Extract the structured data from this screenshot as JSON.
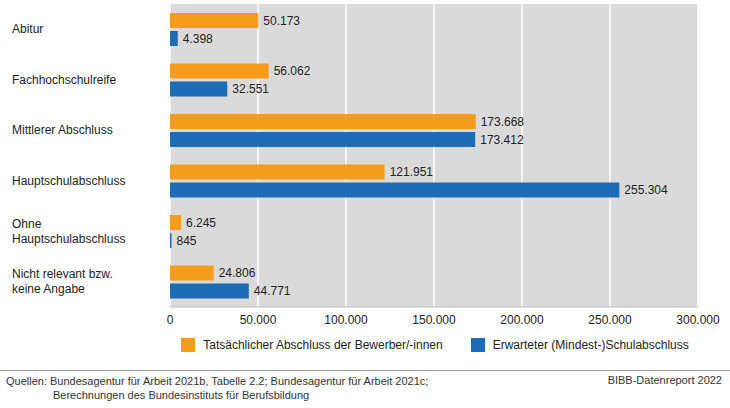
{
  "chart_data": {
    "type": "bar",
    "orientation": "horizontal",
    "categories": [
      "Abitur",
      "Fachhochschulreife",
      "Mittlerer Abschluss",
      "Hauptschulabschluss",
      "Ohne Hauptschulabschluss",
      "Nicht relevant bzw. keine Angabe"
    ],
    "series": [
      {
        "name": "Tatsächlicher Abschluss der Bewerber/-innen",
        "color": "#f59c1a",
        "values": [
          50173,
          56062,
          173668,
          121951,
          6245,
          24806
        ],
        "value_labels": [
          "50.173",
          "56.062",
          "173.668",
          "121.951",
          "6.245",
          "24.806"
        ]
      },
      {
        "name": "Erwarteter (Mindest-)Schulabschluss",
        "color": "#1c6db5",
        "values": [
          4398,
          32551,
          173412,
          255304,
          845,
          44771
        ],
        "value_labels": [
          "4.398",
          "32.551",
          "173.412",
          "255.304",
          "845",
          "44.771"
        ]
      }
    ],
    "xlim": [
      0,
      300000
    ],
    "xticks": [
      0,
      {
        "value": 50000,
        "label": "50.000"
      },
      {
        "value": 100000,
        "label": "100.000"
      },
      {
        "value": 150000,
        "label": "150.000"
      },
      {
        "value": 200000,
        "label": "200.000"
      },
      {
        "value": 250000,
        "label": "250.000"
      },
      {
        "value": 300000,
        "label": "300.000"
      }
    ],
    "data_labels": true,
    "grid": true,
    "legend": "bottom",
    "source": [
      "Quellen: Bundesagentur für Arbeit 2021b, Tabelle 2.2; Bundesagentur für Arbeit 2021c;",
      "Berechnungen des Bundesinstituts für Berufsbildung"
    ],
    "credit": "BIBB-Datenreport 2022"
  }
}
